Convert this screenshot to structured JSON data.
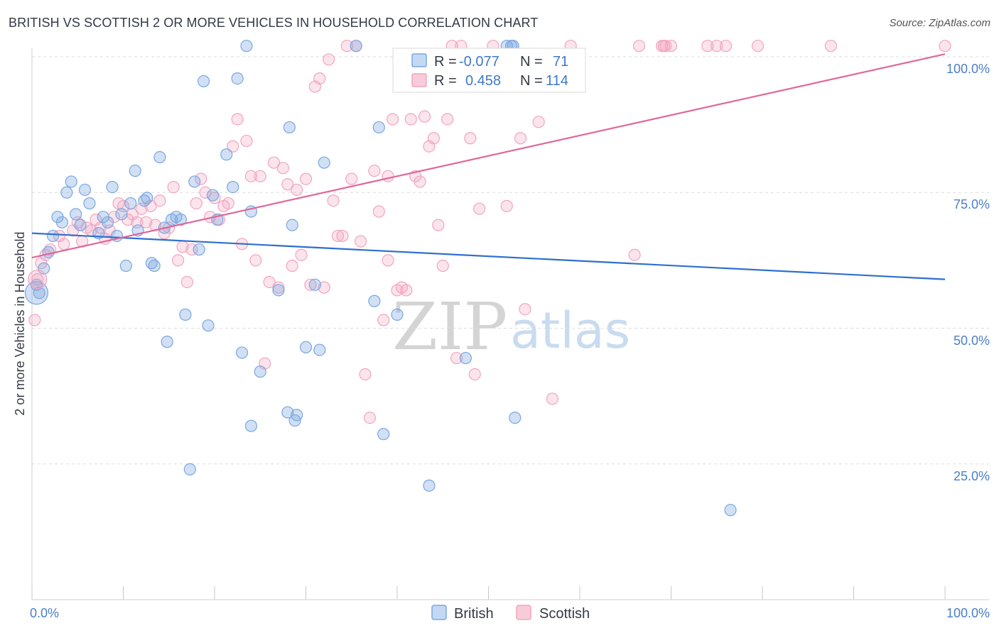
{
  "title": "BRITISH VS SCOTTISH 2 OR MORE VEHICLES IN HOUSEHOLD CORRELATION CHART",
  "source": "Source: ZipAtlas.com",
  "colors": {
    "british": "#7aa7e0",
    "british_line": "#2e6fcf",
    "scottish": "#f2a5bf",
    "scottish_line": "#e0679a",
    "tick": "#4a7fc8"
  },
  "legend_box": {
    "rows": [
      {
        "r_label": "R =",
        "r_value": "-0.077",
        "n_label": "N =",
        "n_value": "71"
      },
      {
        "r_label": "R =",
        "r_value": "0.458",
        "n_label": "N =",
        "n_value": "114"
      }
    ]
  },
  "watermark": {
    "zip": "ZIP",
    "atlas": "atlas"
  },
  "chart_data": {
    "type": "scatter",
    "title": "BRITISH VS SCOTTISH 2 OR MORE VEHICLES IN HOUSEHOLD CORRELATION CHART",
    "xlabel": "",
    "ylabel": "2 or more Vehicles in Household",
    "xlim": [
      0,
      100
    ],
    "ylim": [
      0,
      100
    ],
    "x_tick_labels": [
      "0.0%",
      "100.0%"
    ],
    "y_ticks": [
      25,
      50,
      75,
      100
    ],
    "y_tick_labels": [
      "25.0%",
      "50.0%",
      "75.0%",
      "100.0%"
    ],
    "grid": true,
    "legend_position": "bottom",
    "series": [
      {
        "name": "British",
        "r": -0.077,
        "n": 71,
        "trend": {
          "x": [
            0,
            100
          ],
          "y": [
            67.5,
            59.0
          ]
        },
        "points": [
          [
            0.5,
            58.0
          ],
          [
            0.8,
            56.5
          ],
          [
            1.3,
            61.0
          ],
          [
            1.8,
            64.0
          ],
          [
            2.3,
            67.0
          ],
          [
            2.8,
            70.5
          ],
          [
            3.3,
            69.5
          ],
          [
            3.8,
            75.0
          ],
          [
            4.3,
            77.0
          ],
          [
            4.8,
            71.0
          ],
          [
            5.3,
            69.0
          ],
          [
            5.8,
            75.5
          ],
          [
            6.3,
            73.0
          ],
          [
            7.3,
            67.5
          ],
          [
            7.8,
            70.5
          ],
          [
            8.3,
            69.5
          ],
          [
            8.8,
            76.0
          ],
          [
            9.3,
            67.0
          ],
          [
            9.8,
            71.0
          ],
          [
            10.3,
            61.5
          ],
          [
            10.8,
            73.0
          ],
          [
            11.3,
            79.0
          ],
          [
            11.6,
            68.0
          ],
          [
            12.3,
            73.5
          ],
          [
            12.6,
            74.0
          ],
          [
            13.1,
            62.0
          ],
          [
            13.4,
            61.5
          ],
          [
            14.0,
            81.5
          ],
          [
            14.5,
            68.5
          ],
          [
            14.8,
            47.5
          ],
          [
            15.3,
            70.0
          ],
          [
            15.8,
            70.5
          ],
          [
            16.3,
            70.0
          ],
          [
            16.8,
            52.5
          ],
          [
            17.3,
            24.0
          ],
          [
            17.8,
            77.0
          ],
          [
            18.3,
            64.5
          ],
          [
            18.8,
            95.5
          ],
          [
            19.3,
            50.5
          ],
          [
            19.8,
            74.5
          ],
          [
            20.3,
            70.0
          ],
          [
            21.3,
            82.0
          ],
          [
            22.0,
            76.0
          ],
          [
            22.5,
            96.0
          ],
          [
            23.0,
            45.5
          ],
          [
            23.5,
            102.0
          ],
          [
            24.0,
            71.5
          ],
          [
            24.0,
            32.0
          ],
          [
            25.0,
            42.0
          ],
          [
            27.0,
            57.0
          ],
          [
            28.0,
            34.5
          ],
          [
            28.2,
            87.0
          ],
          [
            28.5,
            69.0
          ],
          [
            28.8,
            33.0
          ],
          [
            29.0,
            34.0
          ],
          [
            30.0,
            46.5
          ],
          [
            31.0,
            58.0
          ],
          [
            31.5,
            46.0
          ],
          [
            32.0,
            80.5
          ],
          [
            35.5,
            102.0
          ],
          [
            37.5,
            55.0
          ],
          [
            38.0,
            87.0
          ],
          [
            38.5,
            30.5
          ],
          [
            40.0,
            52.5
          ],
          [
            43.5,
            21.0
          ],
          [
            47.5,
            44.5
          ],
          [
            52.5,
            102.0
          ],
          [
            52.0,
            102.0
          ],
          [
            52.7,
            102.0
          ],
          [
            52.9,
            33.5
          ],
          [
            76.5,
            16.5
          ]
        ]
      },
      {
        "name": "Scottish",
        "r": 0.458,
        "n": 114,
        "trend": {
          "x": [
            0,
            100
          ],
          "y": [
            63.0,
            100.5
          ]
        },
        "points": [
          [
            0.3,
            51.5
          ],
          [
            0.6,
            59.0
          ],
          [
            1.0,
            62.0
          ],
          [
            1.5,
            63.5
          ],
          [
            2.0,
            64.5
          ],
          [
            3.0,
            67.0
          ],
          [
            3.5,
            65.5
          ],
          [
            4.5,
            68.0
          ],
          [
            5.0,
            69.5
          ],
          [
            5.5,
            66.0
          ],
          [
            6.0,
            68.5
          ],
          [
            6.5,
            68.0
          ],
          [
            7.0,
            70.0
          ],
          [
            7.5,
            68.5
          ],
          [
            8.0,
            66.5
          ],
          [
            8.5,
            68.0
          ],
          [
            9.0,
            70.5
          ],
          [
            9.5,
            73.0
          ],
          [
            10.0,
            72.5
          ],
          [
            10.5,
            70.0
          ],
          [
            11.0,
            71.0
          ],
          [
            11.5,
            69.5
          ],
          [
            12.0,
            72.0
          ],
          [
            12.5,
            69.5
          ],
          [
            13.0,
            72.5
          ],
          [
            13.5,
            69.0
          ],
          [
            14.0,
            73.5
          ],
          [
            14.5,
            67.5
          ],
          [
            15.0,
            68.5
          ],
          [
            15.5,
            76.0
          ],
          [
            16.0,
            62.5
          ],
          [
            16.5,
            65.0
          ],
          [
            17.0,
            58.5
          ],
          [
            17.5,
            64.5
          ],
          [
            18.0,
            73.0
          ],
          [
            18.5,
            77.5
          ],
          [
            19.0,
            75.0
          ],
          [
            19.5,
            70.5
          ],
          [
            20.0,
            74.0
          ],
          [
            20.5,
            70.0
          ],
          [
            21.0,
            72.5
          ],
          [
            21.5,
            73.0
          ],
          [
            22.0,
            83.5
          ],
          [
            22.5,
            88.5
          ],
          [
            23.0,
            65.5
          ],
          [
            23.5,
            84.5
          ],
          [
            24.0,
            78.0
          ],
          [
            24.5,
            62.5
          ],
          [
            25.0,
            78.0
          ],
          [
            25.5,
            43.5
          ],
          [
            26.0,
            58.5
          ],
          [
            26.5,
            80.5
          ],
          [
            27.0,
            57.5
          ],
          [
            27.5,
            79.5
          ],
          [
            28.0,
            76.5
          ],
          [
            28.5,
            61.5
          ],
          [
            29.0,
            75.5
          ],
          [
            29.5,
            63.5
          ],
          [
            30.0,
            77.5
          ],
          [
            30.5,
            58.0
          ],
          [
            31.0,
            94.5
          ],
          [
            31.5,
            96.0
          ],
          [
            32.0,
            57.5
          ],
          [
            32.5,
            99.5
          ],
          [
            33.0,
            73.5
          ],
          [
            33.5,
            67.0
          ],
          [
            34.0,
            67.0
          ],
          [
            34.5,
            102.0
          ],
          [
            35.0,
            77.5
          ],
          [
            35.5,
            102.0
          ],
          [
            36.0,
            66.0
          ],
          [
            36.5,
            41.5
          ],
          [
            37.0,
            33.5
          ],
          [
            37.5,
            79.0
          ],
          [
            38.0,
            71.5
          ],
          [
            38.5,
            51.5
          ],
          [
            39.0,
            78.0
          ],
          [
            39.5,
            88.5
          ],
          [
            40.0,
            57.0
          ],
          [
            40.5,
            57.5
          ],
          [
            41.0,
            57.0
          ],
          [
            41.5,
            88.5
          ],
          [
            42.0,
            78.0
          ],
          [
            42.5,
            77.0
          ],
          [
            43.0,
            89.0
          ],
          [
            43.5,
            83.5
          ],
          [
            44.0,
            85.0
          ],
          [
            44.5,
            69.0
          ],
          [
            45.0,
            61.5
          ],
          [
            45.5,
            88.5
          ],
          [
            46.0,
            102.0
          ],
          [
            46.5,
            44.5
          ],
          [
            47.0,
            102.0
          ],
          [
            48.0,
            85.0
          ],
          [
            48.5,
            41.5
          ],
          [
            49.0,
            72.0
          ],
          [
            50.5,
            102.0
          ],
          [
            52.0,
            72.5
          ],
          [
            53.5,
            85.0
          ],
          [
            54.0,
            53.5
          ],
          [
            55.5,
            88.0
          ],
          [
            57.0,
            37.0
          ],
          [
            59.0,
            102.0
          ],
          [
            66.5,
            102.0
          ],
          [
            69.0,
            102.0
          ],
          [
            69.2,
            102.0
          ],
          [
            69.4,
            102.0
          ],
          [
            70.0,
            102.0
          ],
          [
            74.0,
            102.0
          ],
          [
            75.0,
            102.0
          ],
          [
            76.0,
            102.0
          ],
          [
            79.5,
            102.0
          ],
          [
            87.5,
            102.0
          ],
          [
            100.0,
            102.0
          ],
          [
            66.0,
            63.5
          ],
          [
            39.0,
            62.5
          ]
        ]
      }
    ]
  },
  "bottom_legend": {
    "items": [
      "British",
      "Scottish"
    ]
  }
}
